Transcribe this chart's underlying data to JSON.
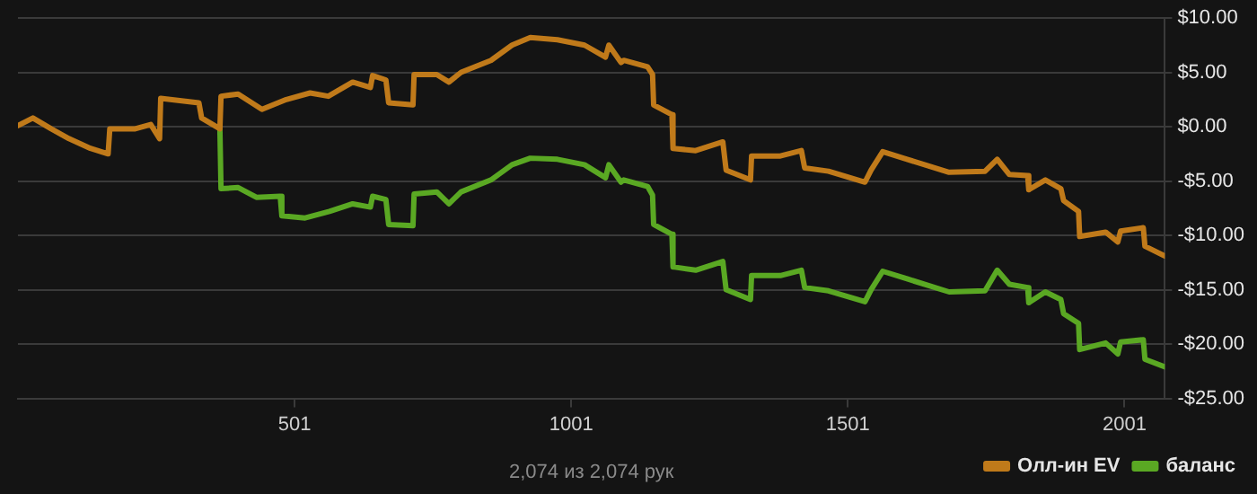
{
  "chart_data": {
    "type": "line",
    "annotations": [
      "2,074 из 2,074 рук"
    ],
    "xlim": [
      1,
      2074
    ],
    "xticks": [
      501,
      1001,
      1501,
      2001
    ],
    "ylim": [
      -25,
      10
    ],
    "yticks": [
      {
        "value": 10,
        "label": "$10.00"
      },
      {
        "value": 5,
        "label": "$5.00"
      },
      {
        "value": 0,
        "label": "$0.00"
      },
      {
        "value": -5,
        "label": "-$5.00"
      },
      {
        "value": -10,
        "label": "-$10.00"
      },
      {
        "value": -15,
        "label": "-$15.00"
      },
      {
        "value": -20,
        "label": "-$20.00"
      },
      {
        "value": -25,
        "label": "-$25.00"
      }
    ],
    "grid": "y",
    "legend": "bottom right",
    "marker": "none",
    "line_style": "solid",
    "series": [
      {
        "name": "Олл-ин EV",
        "color": "#c07a1a",
        "x": [
          1,
          28,
          61,
          93,
          132,
          164,
          167,
          213,
          241,
          257,
          259,
          328,
          333,
          366,
          368,
          399,
          442,
          486,
          529,
          562,
          606,
          638,
          642,
          666,
          671,
          715,
          717,
          758,
          780,
          802,
          856,
          894,
          927,
          976,
          1025,
          1063,
          1069,
          1091,
          1096,
          1139,
          1148,
          1150,
          1183,
          1185,
          1226,
          1275,
          1281,
          1325,
          1327,
          1379,
          1417,
          1423,
          1466,
          1532,
          1543,
          1564,
          1608,
          1684,
          1749,
          1771,
          1793,
          1826,
          1828,
          1858,
          1886,
          1891,
          1918,
          1920,
          1967,
          1989,
          1994,
          2035,
          2038,
          2074
        ],
        "values": [
          0.1,
          0.8,
          -0.2,
          -1.1,
          -2,
          -2.5,
          -0.2,
          -0.2,
          0.2,
          -1.1,
          2.6,
          2.2,
          0.8,
          -0.2,
          2.8,
          3,
          1.6,
          2.5,
          3.1,
          2.8,
          4.1,
          3.6,
          4.7,
          4.3,
          2.2,
          2,
          4.8,
          4.8,
          4.1,
          5,
          6.1,
          7.5,
          8.2,
          8,
          7.5,
          6.4,
          7.5,
          5.9,
          6.1,
          5.5,
          4.8,
          2,
          1.1,
          -2,
          -2.2,
          -1.4,
          -4,
          -4.9,
          -2.7,
          -2.7,
          -2.2,
          -3.8,
          -4.1,
          -5.1,
          -4,
          -2.3,
          -3,
          -4.2,
          -4.1,
          -3,
          -4.4,
          -4.5,
          -5.8,
          -4.9,
          -5.7,
          -6.8,
          -7.8,
          -10.1,
          -9.7,
          -10.6,
          -9.6,
          -9.3,
          -11,
          -11.9
        ]
      },
      {
        "name": "баланс",
        "color": "#5aa823",
        "x": [
          366,
          368,
          399,
          432,
          475,
          478,
          520,
          564,
          606,
          638,
          642,
          666,
          671,
          715,
          717,
          758,
          780,
          802,
          856,
          894,
          927,
          976,
          1025,
          1063,
          1069,
          1091,
          1096,
          1139,
          1148,
          1150,
          1183,
          1185,
          1226,
          1275,
          1281,
          1325,
          1327,
          1379,
          1417,
          1423,
          1466,
          1532,
          1543,
          1564,
          1608,
          1684,
          1749,
          1771,
          1793,
          1826,
          1828,
          1858,
          1886,
          1891,
          1918,
          1920,
          1967,
          1989,
          1994,
          2035,
          2038,
          2074
        ],
        "values": [
          -0.2,
          -5.7,
          -5.6,
          -6.5,
          -6.4,
          -8.2,
          -8.4,
          -7.8,
          -7.1,
          -7.4,
          -6.4,
          -6.7,
          -9,
          -9.1,
          -6.2,
          -6,
          -7.1,
          -6,
          -4.9,
          -3.5,
          -2.9,
          -3,
          -3.5,
          -4.7,
          -3.5,
          -5.1,
          -4.9,
          -5.5,
          -6.3,
          -9,
          -9.9,
          -12.9,
          -13.2,
          -12.4,
          -15,
          -15.9,
          -13.7,
          -13.7,
          -13.2,
          -14.8,
          -15.1,
          -16.1,
          -15,
          -13.3,
          -14,
          -15.2,
          -15.1,
          -13.2,
          -14.5,
          -14.8,
          -16.2,
          -15.2,
          -15.9,
          -17.2,
          -18.1,
          -20.5,
          -19.9,
          -20.9,
          -19.8,
          -19.6,
          -21.4,
          -22.1
        ]
      }
    ]
  }
}
